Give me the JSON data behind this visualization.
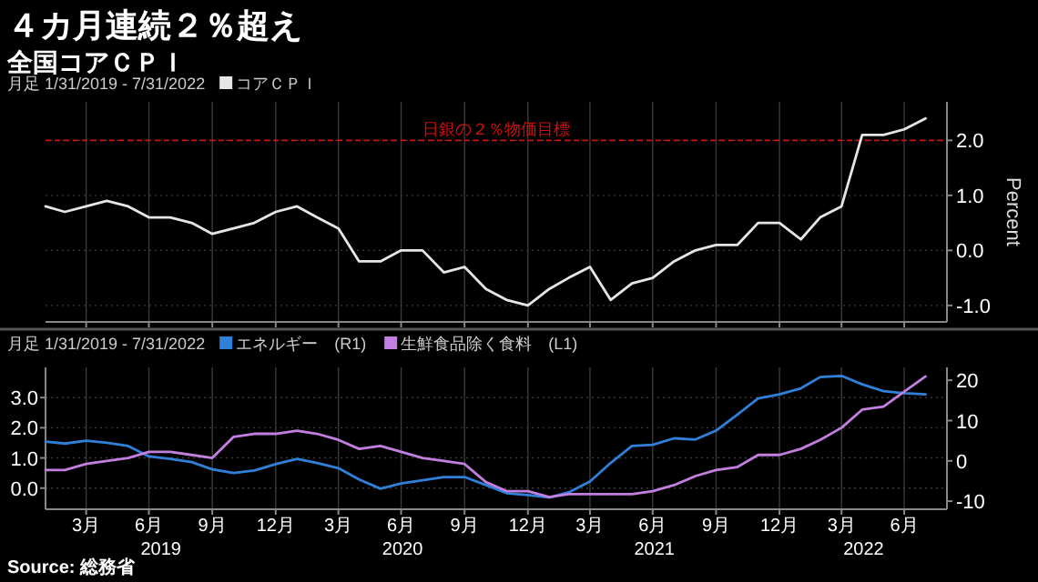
{
  "chart_data": [
    {
      "type": "line",
      "title": "４カ月連続２％超え",
      "subtitle": "全国コアＣＰＩ",
      "annotations": [
        "月足 1/31/2019 - 7/31/2022"
      ],
      "legend": "top left",
      "ylabel": "Percent",
      "grid": true,
      "tick_labels": "y",
      "x": [
        "2019-01-31",
        "2019-02-28",
        "2019-03-31",
        "2019-04-30",
        "2019-05-31",
        "2019-06-30",
        "2019-07-31",
        "2019-08-31",
        "2019-09-30",
        "2019-10-31",
        "2019-11-30",
        "2019-12-31",
        "2020-01-31",
        "2020-02-29",
        "2020-03-31",
        "2020-04-30",
        "2020-05-31",
        "2020-06-30",
        "2020-07-31",
        "2020-08-31",
        "2020-09-30",
        "2020-10-31",
        "2020-11-30",
        "2020-12-31",
        "2021-01-31",
        "2021-02-28",
        "2021-03-31",
        "2021-04-30",
        "2021-05-31",
        "2021-06-30",
        "2021-07-31",
        "2021-08-31",
        "2021-09-30",
        "2021-10-31",
        "2021-11-30",
        "2021-12-31",
        "2022-01-31",
        "2022-02-28",
        "2022-03-31",
        "2022-04-30",
        "2022-05-31",
        "2022-06-30",
        "2022-07-31"
      ],
      "xlim": [
        "2019-01-31",
        "2022-08-31"
      ],
      "xticks": [
        {
          "value": "2019-03-31",
          "label": null
        },
        {
          "value": "2019-06-30",
          "label": null
        },
        {
          "value": "2019-09-30",
          "label": null
        },
        {
          "value": "2019-12-31",
          "label": null
        },
        {
          "value": "2020-03-31",
          "label": null
        },
        {
          "value": "2020-06-30",
          "label": null
        },
        {
          "value": "2020-09-30",
          "label": null
        },
        {
          "value": "2020-12-31",
          "label": null
        },
        {
          "value": "2021-03-31",
          "label": null
        },
        {
          "value": "2021-06-30",
          "label": null
        },
        {
          "value": "2021-09-30",
          "label": null
        },
        {
          "value": "2021-12-31",
          "label": null
        },
        {
          "value": "2022-03-31",
          "label": null
        },
        {
          "value": "2022-06-30",
          "label": null
        }
      ],
      "ylim": [
        -1.3,
        2.7
      ],
      "yticks": [
        {
          "value": -1,
          "label": "-1.0"
        },
        {
          "value": 0,
          "label": "0.0"
        },
        {
          "value": 1,
          "label": "1.0"
        },
        {
          "value": 2,
          "label": "2.0"
        }
      ],
      "ref_lines": [
        {
          "axis": "y",
          "value": 2,
          "label": "日銀の２％物価目標",
          "color": "#d01010",
          "line_style": "dashed"
        }
      ],
      "series": [
        {
          "name": "コアＣＰＩ",
          "color": "#e6e6e6",
          "values": [
            0.8,
            0.7,
            0.8,
            0.9,
            0.8,
            0.6,
            0.6,
            0.5,
            0.3,
            0.4,
            0.5,
            0.7,
            0.8,
            0.6,
            0.4,
            -0.2,
            -0.2,
            0.0,
            0.0,
            -0.4,
            -0.3,
            -0.7,
            -0.9,
            -1.0,
            -0.7,
            -0.5,
            -0.3,
            -0.9,
            -0.6,
            -0.5,
            -0.2,
            0.0,
            0.1,
            0.1,
            0.5,
            0.5,
            0.2,
            0.6,
            0.8,
            2.1,
            2.1,
            2.2,
            2.4
          ]
        }
      ]
    },
    {
      "type": "line",
      "annotations": [
        "月足 1/31/2019 - 7/31/2022",
        "Source: 総務省",
        "2019",
        "2020",
        "2021",
        "2022"
      ],
      "legend": "top left",
      "grid": true,
      "x": [
        "2019-01-31",
        "2019-02-28",
        "2019-03-31",
        "2019-04-30",
        "2019-05-31",
        "2019-06-30",
        "2019-07-31",
        "2019-08-31",
        "2019-09-30",
        "2019-10-31",
        "2019-11-30",
        "2019-12-31",
        "2020-01-31",
        "2020-02-29",
        "2020-03-31",
        "2020-04-30",
        "2020-05-31",
        "2020-06-30",
        "2020-07-31",
        "2020-08-31",
        "2020-09-30",
        "2020-10-31",
        "2020-11-30",
        "2020-12-31",
        "2021-01-31",
        "2021-02-28",
        "2021-03-31",
        "2021-04-30",
        "2021-05-31",
        "2021-06-30",
        "2021-07-31",
        "2021-08-31",
        "2021-09-30",
        "2021-10-31",
        "2021-11-30",
        "2021-12-31",
        "2022-01-31",
        "2022-02-28",
        "2022-03-31",
        "2022-04-30",
        "2022-05-31",
        "2022-06-30",
        "2022-07-31"
      ],
      "xlim": [
        "2019-01-31",
        "2022-08-31"
      ],
      "xticks": [
        {
          "value": "2019-03-31",
          "label": "3月"
        },
        {
          "value": "2019-06-30",
          "label": "6月"
        },
        {
          "value": "2019-09-30",
          "label": "9月"
        },
        {
          "value": "2019-12-31",
          "label": "12月"
        },
        {
          "value": "2020-03-31",
          "label": "3月"
        },
        {
          "value": "2020-06-30",
          "label": "6月"
        },
        {
          "value": "2020-09-30",
          "label": "9月"
        },
        {
          "value": "2020-12-31",
          "label": "12月"
        },
        {
          "value": "2021-03-31",
          "label": "3月"
        },
        {
          "value": "2021-06-30",
          "label": "6月"
        },
        {
          "value": "2021-09-30",
          "label": "9月"
        },
        {
          "value": "2021-12-31",
          "label": "12月"
        },
        {
          "value": "2022-03-31",
          "label": "3月"
        },
        {
          "value": "2022-06-30",
          "label": "6月"
        }
      ],
      "ylim": [
        -0.7,
        4.0
      ],
      "yticks": [
        {
          "value": 0,
          "label": "0.0"
        },
        {
          "value": 1,
          "label": "1.0"
        },
        {
          "value": 2,
          "label": "2.0"
        },
        {
          "value": 3,
          "label": "3.0"
        }
      ],
      "y2lim": [
        -12,
        23.2
      ],
      "y2ticks": [
        -10,
        0,
        10,
        20
      ],
      "series": [
        {
          "name": "エネルギー　(R1)",
          "color": "#2f80d8",
          "axis": "y2",
          "values": [
            4.8,
            4.3,
            5.0,
            4.5,
            3.7,
            1.1,
            0.5,
            -0.3,
            -2.1,
            -3.0,
            -2.4,
            -0.8,
            0.5,
            -0.5,
            -1.8,
            -4.6,
            -6.9,
            -5.6,
            -4.8,
            -4.0,
            -4.0,
            -6.0,
            -8.0,
            -8.5,
            -9.1,
            -7.8,
            -5.1,
            -0.5,
            3.7,
            4.0,
            5.6,
            5.3,
            7.5,
            11.5,
            15.5,
            16.5,
            18.0,
            20.8,
            21.1,
            19.0,
            17.3,
            16.8,
            16.5
          ]
        },
        {
          "name": "生鮮食品除く食料　(L1)",
          "color": "#c27fe0",
          "axis": "y",
          "values": [
            0.6,
            0.6,
            0.8,
            0.9,
            1.0,
            1.2,
            1.2,
            1.1,
            1.0,
            1.7,
            1.8,
            1.8,
            1.9,
            1.8,
            1.6,
            1.3,
            1.4,
            1.2,
            1.0,
            0.9,
            0.8,
            0.2,
            -0.1,
            -0.1,
            -0.3,
            -0.2,
            -0.2,
            -0.2,
            -0.2,
            -0.1,
            0.1,
            0.4,
            0.6,
            0.7,
            1.1,
            1.1,
            1.3,
            1.6,
            2.0,
            2.6,
            2.7,
            3.2,
            3.7
          ]
        }
      ]
    }
  ]
}
